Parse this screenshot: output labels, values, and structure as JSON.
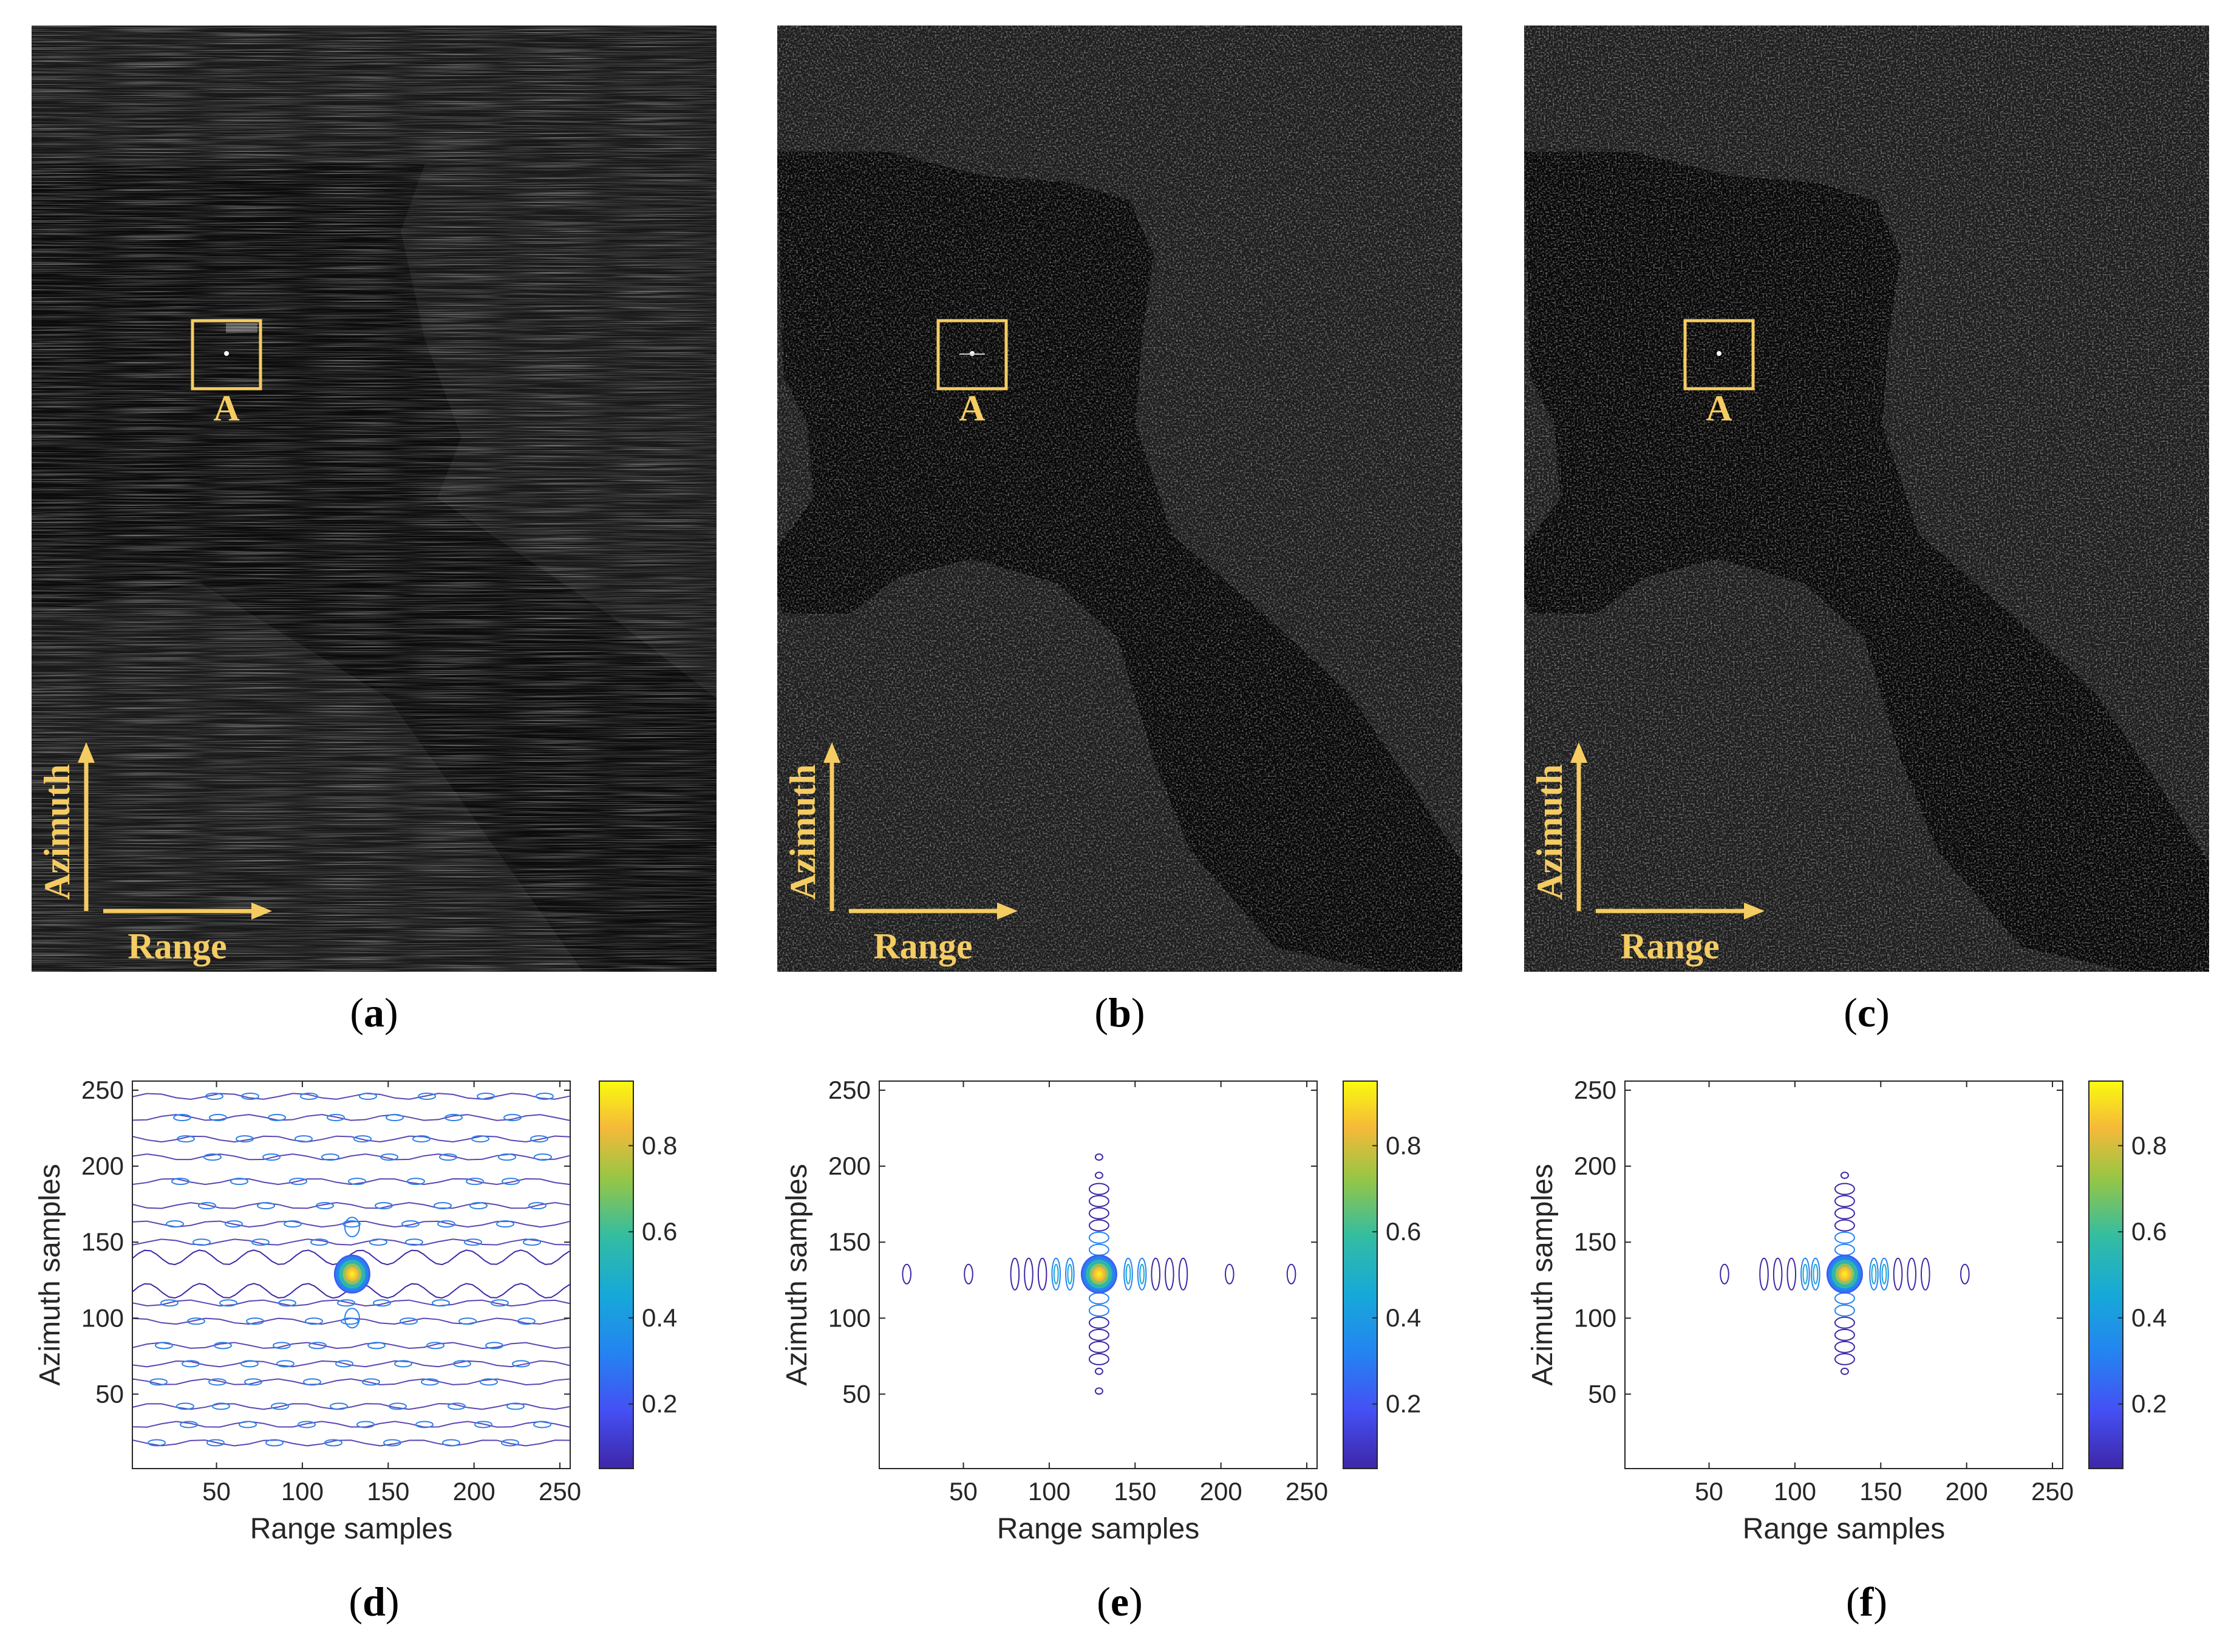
{
  "sar_panels": [
    {
      "id": "a",
      "target_label": "A",
      "range_label": "Range",
      "azimuth_label": "Azimuth"
    },
    {
      "id": "b",
      "target_label": "A",
      "range_label": "Range",
      "azimuth_label": "Azimuth"
    },
    {
      "id": "c",
      "target_label": "A",
      "range_label": "Range",
      "azimuth_label": "Azimuth"
    }
  ],
  "captions": [
    "a",
    "b",
    "c",
    "d",
    "e",
    "f"
  ],
  "colors": {
    "annotation": "#f5cc62",
    "contour_low": "#3e26a8",
    "contour_high": "#f9fb0e"
  },
  "chart_data": [
    {
      "type": "contour",
      "panel": "d",
      "xlabel": "Range samples",
      "ylabel": "Azimuth samples",
      "xlim": [
        1,
        256
      ],
      "ylim": [
        1,
        256
      ],
      "xticks": [
        50,
        100,
        150,
        200,
        250
      ],
      "yticks": [
        50,
        100,
        150,
        200,
        250
      ],
      "colorbar": {
        "ticks": [
          0.2,
          0.4,
          0.6,
          0.8
        ],
        "range": [
          0.05,
          0.95
        ]
      },
      "peak": {
        "x": 129,
        "y": 129,
        "value": 0.95
      },
      "range_lobes": [],
      "azimuth_lobes": [],
      "sidelobe_pattern": "horizontal stripes"
    },
    {
      "type": "contour",
      "panel": "e",
      "xlabel": "Range samples",
      "ylabel": "Azimuth samples",
      "xlim": [
        1,
        256
      ],
      "ylim": [
        1,
        256
      ],
      "xticks": [
        50,
        100,
        150,
        200,
        250
      ],
      "yticks": [
        50,
        100,
        150,
        200,
        250
      ],
      "colorbar": {
        "ticks": [
          0.2,
          0.4,
          0.6,
          0.8
        ],
        "range": [
          0.05,
          0.95
        ]
      },
      "peak": {
        "x": 129,
        "y": 129,
        "value": 0.95
      },
      "range_lobes": [
        17,
        53,
        80,
        88,
        96,
        104,
        112,
        146,
        154,
        162,
        170,
        178,
        205,
        241
      ],
      "azimuth_lobes": [
        52,
        65,
        73,
        81,
        89,
        97,
        105,
        113,
        145,
        153,
        161,
        169,
        177,
        185,
        194,
        206
      ]
    },
    {
      "type": "contour",
      "panel": "f",
      "xlabel": "Range samples",
      "ylabel": "Azimuth samples",
      "xlim": [
        1,
        256
      ],
      "ylim": [
        1,
        256
      ],
      "xticks": [
        50,
        100,
        150,
        200,
        250
      ],
      "yticks": [
        50,
        100,
        150,
        200,
        250
      ],
      "colorbar": {
        "ticks": [
          0.2,
          0.4,
          0.6,
          0.8
        ],
        "range": [
          0.05,
          0.95
        ]
      },
      "peak": {
        "x": 129,
        "y": 129,
        "value": 0.95
      },
      "range_lobes": [
        59,
        82,
        90,
        98,
        106,
        112,
        146,
        152,
        160,
        168,
        176,
        199
      ],
      "azimuth_lobes": [
        65,
        73,
        81,
        89,
        97,
        105,
        113,
        145,
        153,
        161,
        169,
        177,
        185,
        194
      ]
    }
  ]
}
